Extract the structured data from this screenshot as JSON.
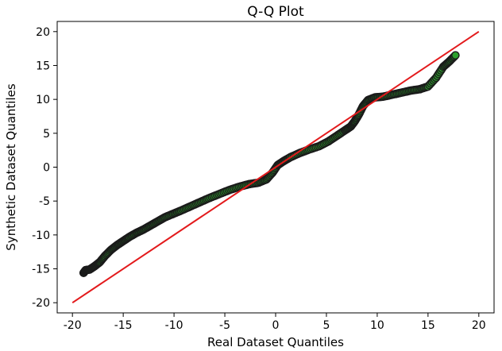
{
  "chart_data": {
    "type": "scatter",
    "title": "Q-Q Plot",
    "xlabel": "Real Dataset Quantiles",
    "ylabel": "Synthetic Dataset Quantiles",
    "xlim": [
      -21.5,
      21.5
    ],
    "ylim": [
      -21.5,
      21.5
    ],
    "x_ticks": [
      -20,
      -15,
      -10,
      -5,
      0,
      5,
      10,
      15,
      20
    ],
    "y_ticks": [
      -20,
      -15,
      -10,
      -5,
      0,
      5,
      10,
      15,
      20
    ],
    "grid": false,
    "legend": "none",
    "colors": {
      "points_fill": "#2ca02c",
      "points_edge": "#1a1a1a",
      "reference_line": "#e31a1c"
    },
    "reference_line": {
      "x": [
        -20,
        20
      ],
      "y": [
        -20,
        20
      ]
    },
    "series": [
      {
        "x": [
          -18.9,
          -18.7,
          -18.3,
          -17.8,
          -17.3,
          -16.8,
          -16.2,
          -15.6,
          -15.0,
          -14.4,
          -13.7,
          -13.0,
          -12.3,
          -11.6,
          -10.9,
          -10.1,
          -9.3,
          -8.4,
          -7.5,
          -6.6,
          -5.6,
          -4.6,
          -3.6,
          -2.6,
          -1.7,
          -0.9,
          -0.3,
          0.2,
          0.8,
          1.5,
          2.4,
          3.3,
          4.3,
          5.2,
          6.0,
          6.8,
          7.4,
          7.8,
          8.2,
          8.6,
          9.1,
          9.8,
          10.6,
          11.5,
          12.4,
          13.3,
          14.2,
          15.0,
          15.8,
          16.5,
          17.1,
          17.7
        ],
        "y": [
          -15.6,
          -15.2,
          -15.1,
          -14.6,
          -14.0,
          -13.1,
          -12.2,
          -11.5,
          -10.9,
          -10.3,
          -9.7,
          -9.2,
          -8.6,
          -8.0,
          -7.4,
          -6.9,
          -6.4,
          -5.8,
          -5.2,
          -4.6,
          -4.0,
          -3.4,
          -2.9,
          -2.5,
          -2.3,
          -1.8,
          -0.8,
          0.3,
          0.9,
          1.5,
          2.1,
          2.6,
          3.1,
          3.8,
          4.6,
          5.4,
          6.0,
          6.8,
          7.8,
          9.0,
          9.9,
          10.3,
          10.4,
          10.7,
          11.0,
          11.3,
          11.5,
          11.9,
          13.2,
          14.8,
          15.6,
          16.5
        ]
      }
    ]
  }
}
